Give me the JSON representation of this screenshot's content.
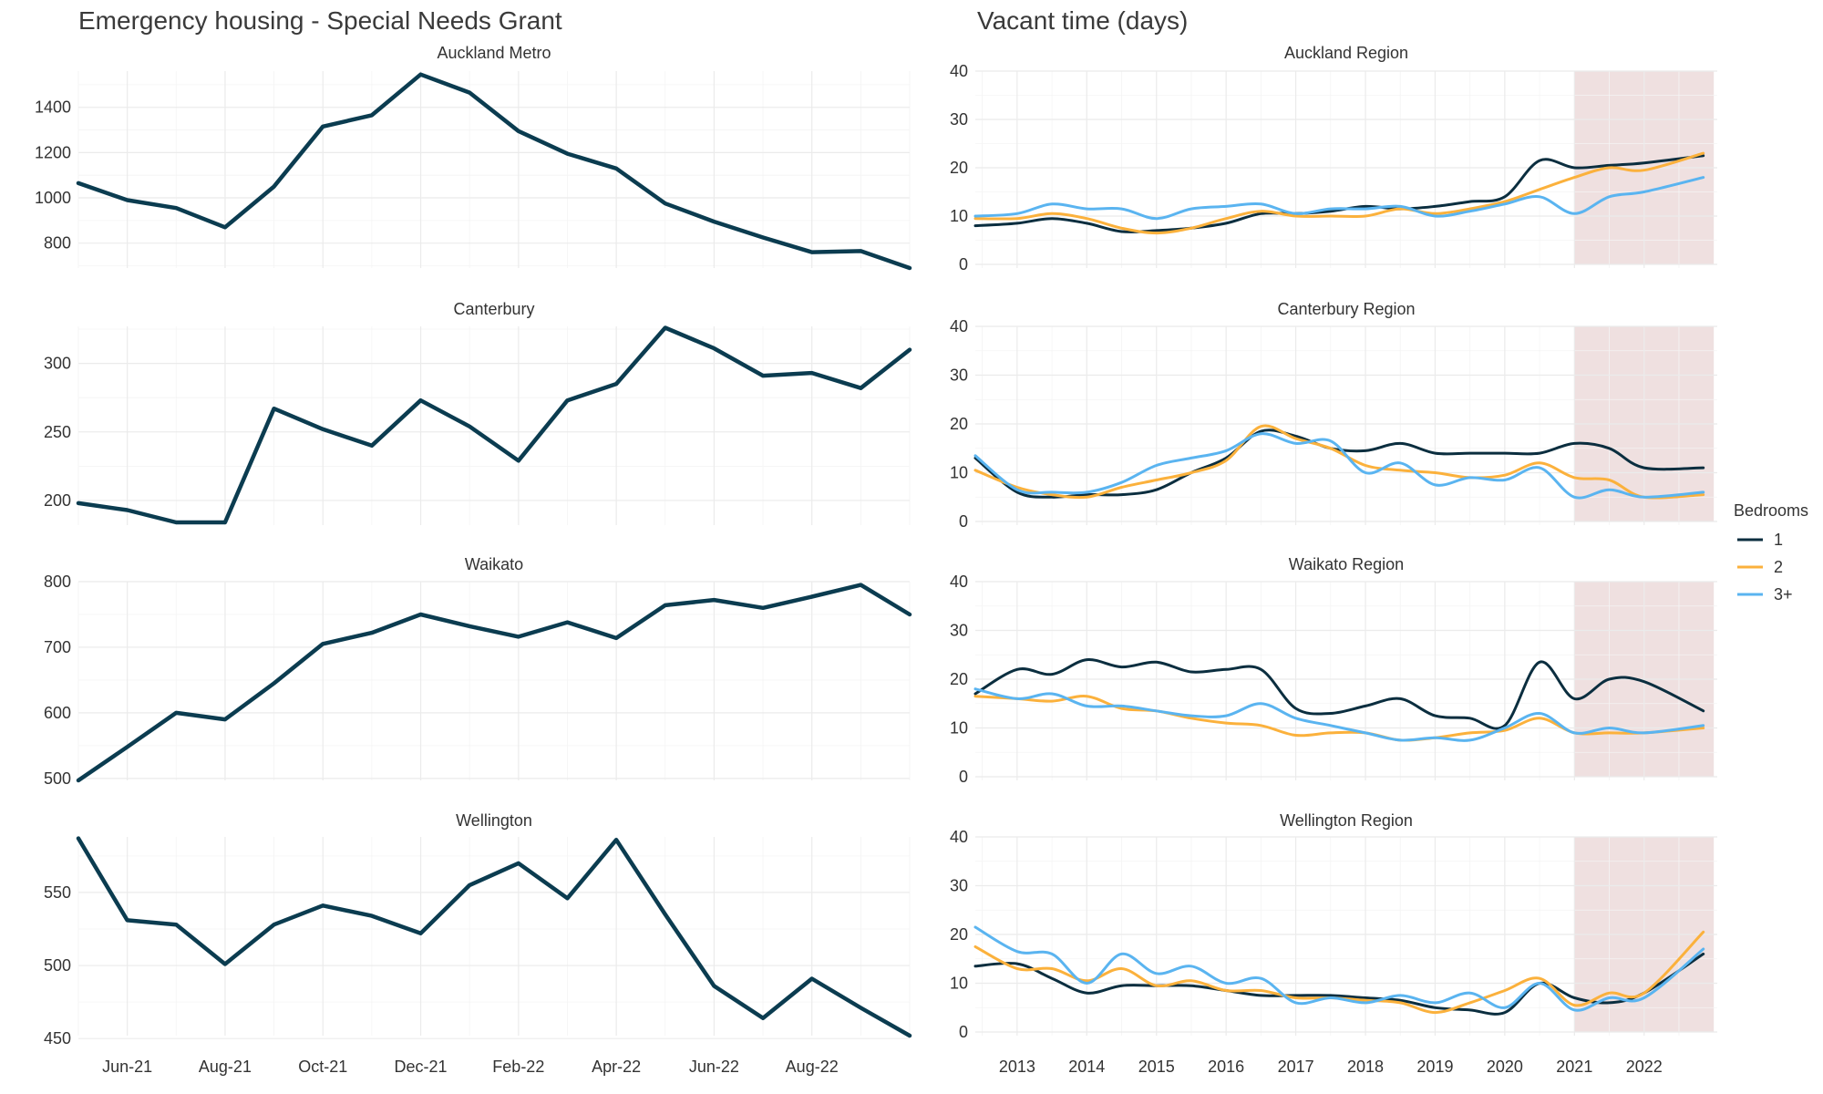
{
  "chart_data": [
    {
      "type": "line",
      "title": "Emergency housing - Special Needs Grant",
      "x_categories": [
        "May-21",
        "Jun-21",
        "Jul-21",
        "Aug-21",
        "Sep-21",
        "Oct-21",
        "Nov-21",
        "Dec-21",
        "Jan-22",
        "Feb-22",
        "Mar-22",
        "Apr-22",
        "May-22",
        "Jun-22",
        "Jul-22",
        "Aug-22",
        "Sep-22",
        "Oct-22"
      ],
      "x_tick_labels": [
        "Jun-21",
        "Aug-21",
        "Oct-21",
        "Dec-21",
        "Feb-22",
        "Apr-22",
        "Jun-22",
        "Aug-22"
      ],
      "x_tick_indices": [
        1,
        3,
        5,
        7,
        9,
        11,
        13,
        15
      ],
      "line_color": "#0b3c50",
      "facets": [
        {
          "name": "Auckland Metro",
          "ylim": [
            690,
            1560
          ],
          "yticks": [
            800,
            1000,
            1200,
            1400
          ],
          "tick_labels": [
            "800",
            "1000",
            "1200",
            "1400"
          ],
          "values": [
            1065,
            990,
            955,
            870,
            1050,
            1315,
            1365,
            1545,
            1465,
            1295,
            1195,
            1130,
            975,
            895,
            825,
            760,
            765,
            690
          ]
        },
        {
          "name": "Canterbury",
          "ylim": [
            182,
            327
          ],
          "yticks": [
            200,
            250,
            300
          ],
          "tick_labels": [
            "200",
            "250",
            "300"
          ],
          "values": [
            198,
            193,
            184,
            184,
            267,
            252,
            240,
            273,
            254,
            229,
            273,
            285,
            326,
            311,
            291,
            293,
            282,
            310
          ]
        },
        {
          "name": "Waikato",
          "ylim": [
            497,
            800
          ],
          "yticks": [
            500,
            600,
            700,
            800
          ],
          "tick_labels": [
            "500",
            "600",
            "700",
            "800"
          ],
          "values": [
            497,
            548,
            600,
            590,
            645,
            705,
            722,
            750,
            732,
            716,
            738,
            714,
            764,
            772,
            760,
            777,
            795,
            750
          ]
        },
        {
          "name": "Wellington",
          "ylim": [
            452,
            588
          ],
          "yticks": [
            450,
            500,
            550
          ],
          "tick_labels": [
            "450",
            "500",
            "550"
          ],
          "values": [
            587,
            531,
            528,
            501,
            528,
            541,
            534,
            522,
            555,
            570,
            546,
            586,
            535,
            486,
            464,
            491,
            471,
            452
          ]
        }
      ]
    },
    {
      "type": "line",
      "title": "Vacant time (days)",
      "x_domain": [
        2012.4,
        2023.05
      ],
      "x_ticks": [
        2013,
        2014,
        2015,
        2016,
        2017,
        2018,
        2019,
        2020,
        2021,
        2022
      ],
      "x_tick_labels": [
        "2013",
        "2014",
        "2015",
        "2016",
        "2017",
        "2018",
        "2019",
        "2020",
        "2021",
        "2022"
      ],
      "ylim": [
        0,
        40
      ],
      "yticks": [
        0,
        10,
        20,
        30,
        40
      ],
      "y_tick_labels": [
        "0",
        "10",
        "20",
        "30",
        "40"
      ],
      "highlight_range": [
        2021.0,
        2023.0
      ],
      "highlight_color": "#efe0e0",
      "legend": {
        "title": "Bedrooms",
        "placement": "right",
        "entries": [
          {
            "label": "1",
            "color": "#0b2e3f"
          },
          {
            "label": "2",
            "color": "#fbb13c"
          },
          {
            "label": "3+",
            "color": "#5ab4f0"
          }
        ]
      },
      "facets": [
        {
          "name": "Auckland Region",
          "series": [
            {
              "bedrooms": "1",
              "x": [
                2012.4,
                2013,
                2013.5,
                2014,
                2014.5,
                2015,
                2015.5,
                2016,
                2016.5,
                2017,
                2017.5,
                2018,
                2018.5,
                2019,
                2019.5,
                2020,
                2020.5,
                2021,
                2021.5,
                2022,
                2022.85
              ],
              "y": [
                8,
                8.5,
                9.5,
                8.5,
                6.8,
                7,
                7.5,
                8.5,
                10.5,
                10.5,
                11,
                12,
                11.5,
                12,
                13,
                14,
                21.5,
                20,
                20.5,
                21,
                22.5
              ]
            },
            {
              "bedrooms": "2",
              "x": [
                2012.4,
                2013,
                2013.5,
                2014,
                2014.5,
                2015,
                2015.5,
                2016,
                2016.5,
                2017,
                2017.5,
                2018,
                2018.5,
                2019,
                2019.5,
                2020,
                2020.5,
                2021,
                2021.5,
                2022,
                2022.85
              ],
              "y": [
                9.5,
                9.5,
                10.5,
                9.5,
                7.5,
                6.5,
                7.5,
                9.5,
                11,
                10,
                10,
                10,
                11.5,
                10.5,
                11.5,
                13,
                15.5,
                18,
                20,
                19.5,
                23
              ]
            },
            {
              "bedrooms": "3+",
              "x": [
                2012.4,
                2013,
                2013.5,
                2014,
                2014.5,
                2015,
                2015.5,
                2016,
                2016.5,
                2017,
                2017.5,
                2018,
                2018.5,
                2019,
                2019.5,
                2020,
                2020.5,
                2021,
                2021.5,
                2022,
                2022.85
              ],
              "y": [
                10,
                10.5,
                12.5,
                11.5,
                11.5,
                9.5,
                11.5,
                12,
                12.5,
                10.5,
                11.5,
                11.5,
                12,
                10,
                11,
                12.5,
                14,
                10.5,
                14,
                15,
                18
              ]
            }
          ]
        },
        {
          "name": "Canterbury Region",
          "series": [
            {
              "bedrooms": "1",
              "x": [
                2012.4,
                2013,
                2013.5,
                2014,
                2014.5,
                2015,
                2015.5,
                2016,
                2016.5,
                2017,
                2017.5,
                2018,
                2018.5,
                2019,
                2019.5,
                2020,
                2020.5,
                2021,
                2021.5,
                2022,
                2022.85
              ],
              "y": [
                13,
                6,
                5,
                5.5,
                5.5,
                6.5,
                10,
                13,
                18.5,
                17.5,
                15,
                14.5,
                16,
                14,
                14,
                14,
                14,
                16,
                15,
                11,
                11
              ]
            },
            {
              "bedrooms": "2",
              "x": [
                2012.4,
                2013,
                2013.5,
                2014,
                2014.5,
                2015,
                2015.5,
                2016,
                2016.5,
                2017,
                2017.5,
                2018,
                2018.5,
                2019,
                2019.5,
                2020,
                2020.5,
                2021,
                2021.5,
                2022,
                2022.85
              ],
              "y": [
                10.5,
                7,
                5.5,
                5,
                7,
                8.5,
                10,
                12.5,
                19.5,
                17,
                15,
                11.5,
                10.5,
                10,
                9,
                9.5,
                12,
                9,
                8.5,
                5,
                5.5
              ]
            },
            {
              "bedrooms": "3+",
              "x": [
                2012.4,
                2013,
                2013.5,
                2014,
                2014.5,
                2015,
                2015.5,
                2016,
                2016.5,
                2017,
                2017.5,
                2018,
                2018.5,
                2019,
                2019.5,
                2020,
                2020.5,
                2021,
                2021.5,
                2022,
                2022.85
              ],
              "y": [
                13.5,
                6.5,
                6,
                6,
                8,
                11.5,
                13,
                14.5,
                18,
                16,
                16.5,
                10,
                12,
                7.5,
                9,
                8.5,
                11,
                5,
                6.5,
                5,
                6
              ]
            }
          ]
        },
        {
          "name": "Waikato Region",
          "series": [
            {
              "bedrooms": "1",
              "x": [
                2012.4,
                2013,
                2013.5,
                2014,
                2014.5,
                2015,
                2015.5,
                2016,
                2016.5,
                2017,
                2017.5,
                2018,
                2018.5,
                2019,
                2019.5,
                2020,
                2020.5,
                2021,
                2021.5,
                2022,
                2022.85
              ],
              "y": [
                17,
                22,
                21,
                24,
                22.5,
                23.5,
                21.5,
                22,
                22,
                14,
                13,
                14.5,
                16,
                12.5,
                12,
                10.5,
                23.5,
                16,
                20,
                19.5,
                13.5
              ]
            },
            {
              "bedrooms": "2",
              "x": [
                2012.4,
                2013,
                2013.5,
                2014,
                2014.5,
                2015,
                2015.5,
                2016,
                2016.5,
                2017,
                2017.5,
                2018,
                2018.5,
                2019,
                2019.5,
                2020,
                2020.5,
                2021,
                2021.5,
                2022,
                2022.85
              ],
              "y": [
                16.5,
                16,
                15.5,
                16.5,
                14,
                13.5,
                12,
                11,
                10.5,
                8.5,
                9,
                9,
                7.5,
                8,
                9,
                9.5,
                12,
                9,
                9,
                9,
                10
              ]
            },
            {
              "bedrooms": "3+",
              "x": [
                2012.4,
                2013,
                2013.5,
                2014,
                2014.5,
                2015,
                2015.5,
                2016,
                2016.5,
                2017,
                2017.5,
                2018,
                2018.5,
                2019,
                2019.5,
                2020,
                2020.5,
                2021,
                2021.5,
                2022,
                2022.85
              ],
              "y": [
                18,
                16,
                17,
                14.5,
                14.5,
                13.5,
                12.5,
                12.5,
                15,
                12,
                10.5,
                9,
                7.5,
                8,
                7.5,
                10,
                13,
                9,
                10,
                9,
                10.5
              ]
            }
          ]
        },
        {
          "name": "Wellington Region",
          "series": [
            {
              "bedrooms": "1",
              "x": [
                2012.4,
                2013,
                2013.5,
                2014,
                2014.5,
                2015,
                2015.5,
                2016,
                2016.5,
                2017,
                2017.5,
                2018,
                2018.5,
                2019,
                2019.5,
                2020,
                2020.5,
                2021,
                2021.5,
                2022,
                2022.85
              ],
              "y": [
                13.5,
                14,
                11,
                8,
                9.5,
                9.5,
                9.5,
                8.5,
                7.5,
                7.5,
                7.5,
                7,
                6.5,
                5,
                4.5,
                4,
                10,
                7,
                6,
                8,
                16
              ]
            },
            {
              "bedrooms": "2",
              "x": [
                2012.4,
                2013,
                2013.5,
                2014,
                2014.5,
                2015,
                2015.5,
                2016,
                2016.5,
                2017,
                2017.5,
                2018,
                2018.5,
                2019,
                2019.5,
                2020,
                2020.5,
                2021,
                2021.5,
                2022,
                2022.85
              ],
              "y": [
                17.5,
                13,
                13,
                10.5,
                13,
                9.5,
                10.5,
                8.5,
                8.5,
                7,
                7,
                6.5,
                6,
                4,
                6,
                8.5,
                11,
                5.5,
                8,
                8,
                20.5
              ]
            },
            {
              "bedrooms": "3+",
              "x": [
                2012.4,
                2013,
                2013.5,
                2014,
                2014.5,
                2015,
                2015.5,
                2016,
                2016.5,
                2017,
                2017.5,
                2018,
                2018.5,
                2019,
                2019.5,
                2020,
                2020.5,
                2021,
                2021.5,
                2022,
                2022.85
              ],
              "y": [
                21.5,
                16.5,
                16,
                10,
                16,
                12,
                13.5,
                10,
                11,
                6,
                7,
                6,
                7.5,
                6,
                8,
                5,
                10,
                4.5,
                7,
                7,
                17
              ]
            }
          ]
        }
      ]
    }
  ]
}
